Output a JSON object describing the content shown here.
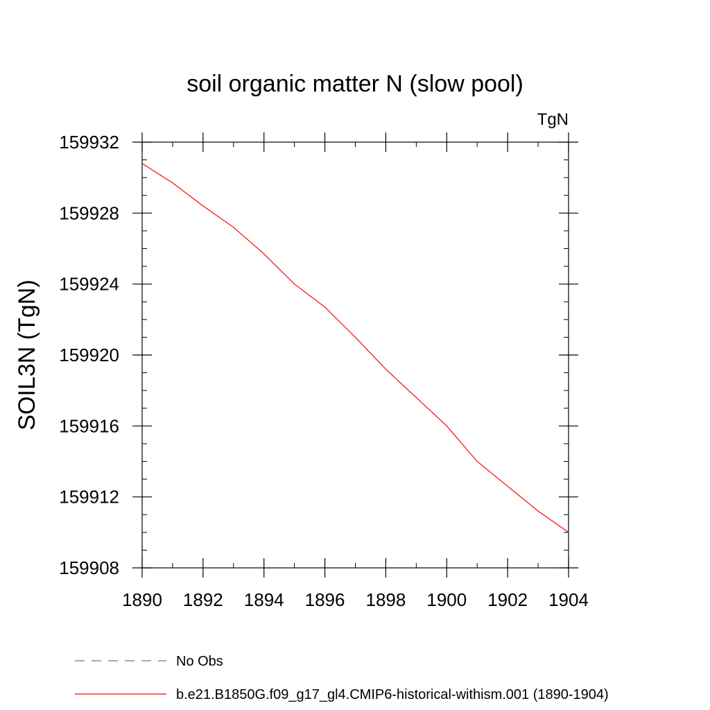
{
  "chart_data": {
    "type": "line",
    "title": "soil organic matter N (slow pool)",
    "units_label": "TgN",
    "ylabel": "SOIL3N  (TgN)",
    "xlabel": "",
    "xlim": [
      1890,
      1904
    ],
    "ylim": [
      159908,
      159932
    ],
    "x_ticks": [
      1890,
      1892,
      1894,
      1896,
      1898,
      1900,
      1902,
      1904
    ],
    "y_ticks": [
      159908,
      159912,
      159916,
      159920,
      159924,
      159928,
      159932
    ],
    "x_minor_step": 1,
    "y_minor_step": 1,
    "grid": false,
    "legend_position": "bottom",
    "series": [
      {
        "name": "b.e21.B1850G.f09_g17_gl4.CMIP6-historical-withism.001 (1890-1904)",
        "color": "#ff0000",
        "dash": "solid",
        "x": [
          1890,
          1891,
          1892,
          1893,
          1894,
          1895,
          1896,
          1897,
          1898,
          1899,
          1900,
          1901,
          1902,
          1903,
          1904
        ],
        "y": [
          159930.8,
          159929.7,
          159928.4,
          159927.2,
          159925.7,
          159924.0,
          159922.7,
          159921.0,
          159919.2,
          159917.6,
          159916.0,
          159914.0,
          159912.6,
          159911.2,
          159910.0
        ]
      }
    ],
    "legend": [
      {
        "label": "No Obs",
        "color": "#6f6fb0",
        "dash": "dashed"
      },
      {
        "label": "b.e21.B1850G.f09_g17_gl4.CMIP6-historical-withism.001 (1890-1904)",
        "color": "#ff0000",
        "dash": "solid"
      }
    ]
  }
}
